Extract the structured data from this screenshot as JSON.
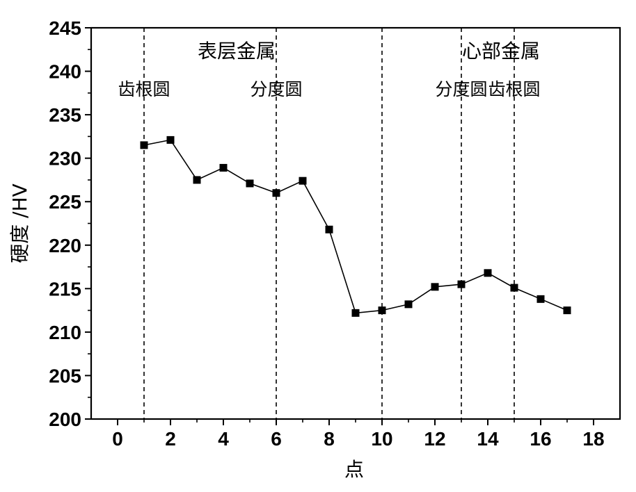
{
  "chart_data": {
    "type": "line",
    "xlabel": "点",
    "ylabel": "硬度 /HV",
    "xlim": [
      -1,
      19
    ],
    "ylim": [
      200,
      245
    ],
    "xticks": [
      0,
      2,
      4,
      6,
      8,
      10,
      12,
      14,
      16,
      18
    ],
    "yticks": [
      200,
      205,
      210,
      215,
      220,
      225,
      230,
      235,
      240,
      245
    ],
    "series": [
      {
        "x": [
          1,
          2,
          3,
          4,
          5,
          6,
          7,
          8,
          9,
          10,
          11,
          12,
          13,
          14,
          15,
          16,
          17
        ],
        "values": [
          231.5,
          232.1,
          227.5,
          228.9,
          227.1,
          226.0,
          227.4,
          221.8,
          212.2,
          212.5,
          213.2,
          215.2,
          215.5,
          216.8,
          215.1,
          213.8,
          212.5
        ],
        "marker": "square",
        "color": "#000000"
      }
    ],
    "vlines": [
      {
        "x": 1,
        "label": "齿根圆"
      },
      {
        "x": 6,
        "label": "分度圆"
      },
      {
        "x": 10,
        "label": ""
      },
      {
        "x": 13,
        "label": "分度圆"
      },
      {
        "x": 15,
        "label": "齿根圆"
      }
    ],
    "regions": [
      {
        "label": "表层金属",
        "x_from": -1,
        "x_to": 10
      },
      {
        "label": "心部金属",
        "x_from": 10,
        "x_to": 19
      }
    ],
    "grid": false,
    "legend": "none"
  }
}
